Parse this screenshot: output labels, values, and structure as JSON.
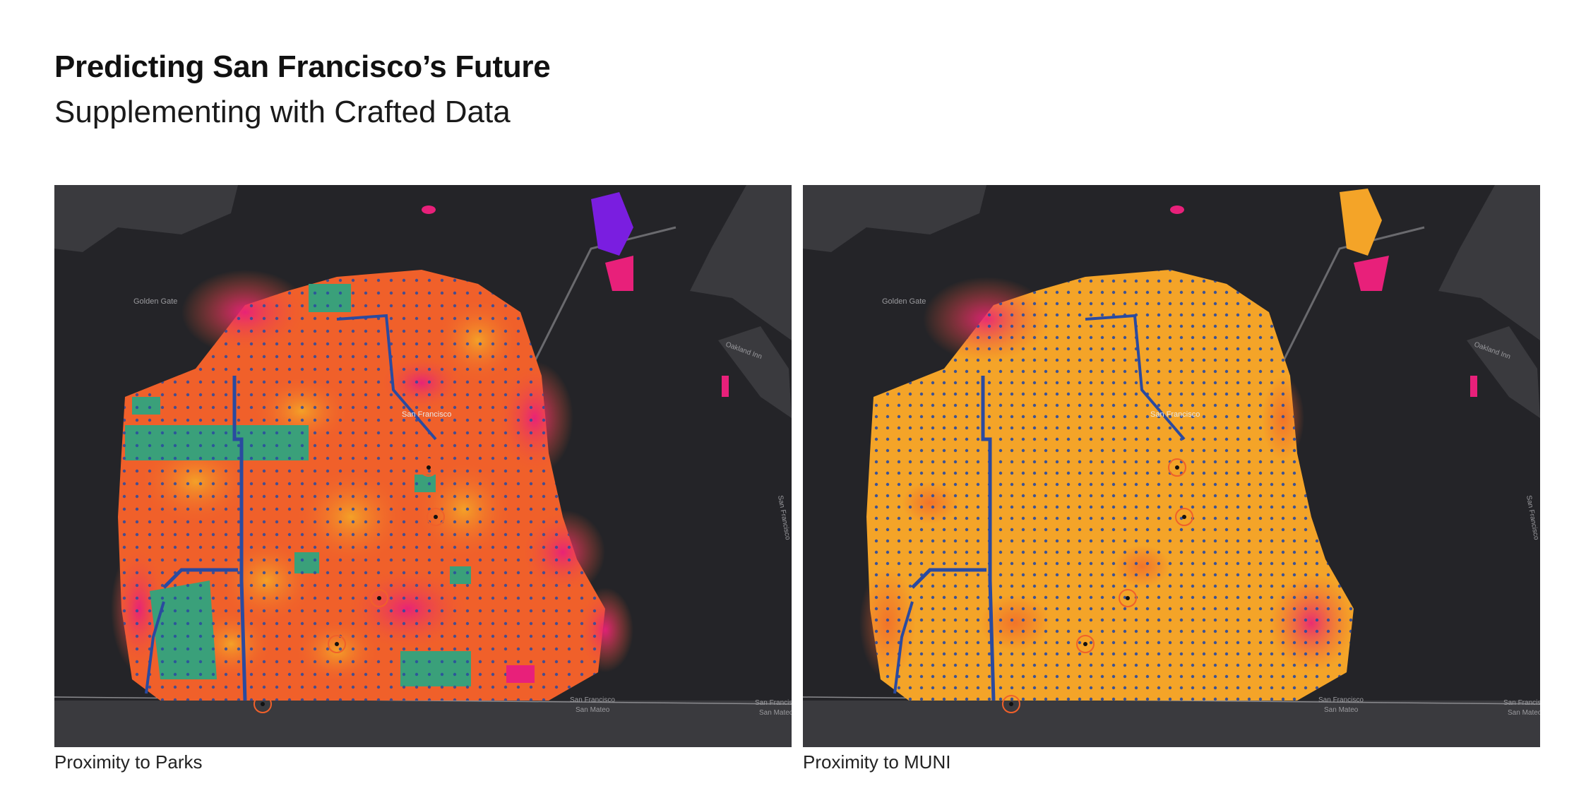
{
  "header": {
    "title": "Predicting San Francisco’s Future",
    "subtitle": "Supplementing with Crafted Data"
  },
  "maps": [
    {
      "caption": "Proximity to Parks",
      "labels": {
        "golden_gate": "Golden Gate",
        "san_francisco": "San Francisco",
        "oakland": "Oakland Inn",
        "county_sf": "San Francisco",
        "county_sm": "San Mateo",
        "county_sf_right": "San Francisco",
        "county_sm_right": "San Mateo",
        "east_label": "San Francisco"
      }
    },
    {
      "caption": "Proximity to MUNI",
      "labels": {
        "golden_gate": "Golden Gate",
        "san_francisco": "San Francisco",
        "oakland": "Oakland Inn",
        "county_sf": "San Francisco",
        "county_sm": "San Mateo",
        "county_sf_right": "San Francisco",
        "county_sm_right": "San Mateo",
        "east_label": "San Francisco"
      }
    }
  ],
  "colors": {
    "background": "#242428",
    "land": "#3a3a3e",
    "heat_low": "#f4a428",
    "heat_mid": "#f0602a",
    "heat_high": "#e8207a",
    "heat_max": "#7a1ee0",
    "park": "#3aa07a",
    "transit": "#2a4aa0"
  },
  "icons": [
    "pin-icon"
  ]
}
